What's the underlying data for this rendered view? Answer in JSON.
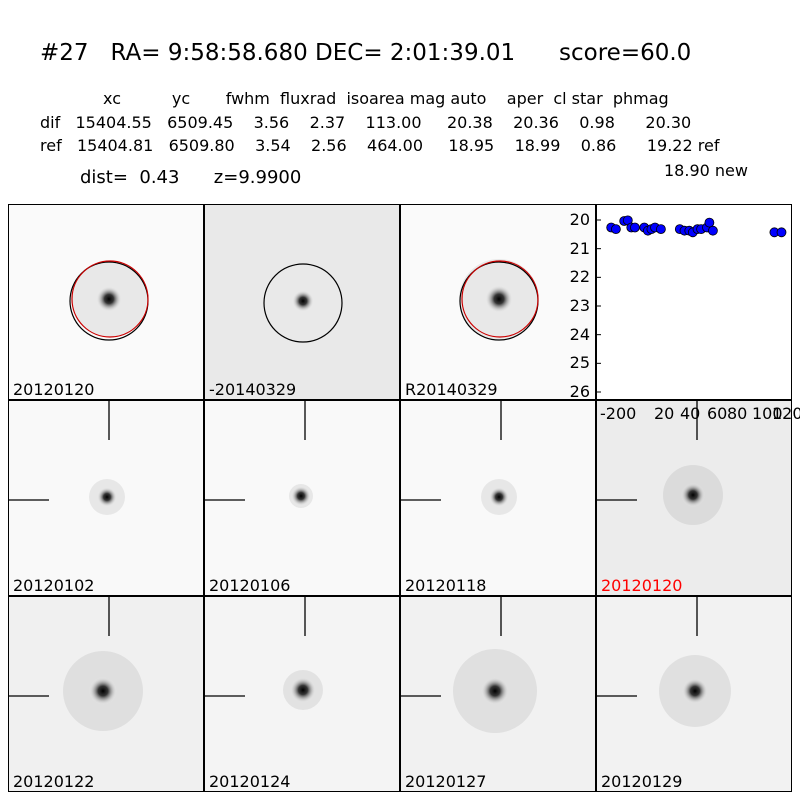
{
  "header": {
    "title": "#27   RA= 9:58:58.680 DEC= 2:01:39.01      score=60.0",
    "columns": "xc          yc       fwhm  fluxrad  isoarea mag auto    aper  cl star  phmag",
    "dif_row": "dif   15404.55   6509.45    3.56    2.37    113.00     20.38    20.36    0.98      20.30",
    "ref_row": "ref   15404.81   6509.80    3.54    2.56    464.00     18.95    18.99    0.86      19.22 ref",
    "new_row": "18.90 new",
    "dist_line": "dist=  0.43      z=9.9900"
  },
  "panels": [
    {
      "label": "20120120",
      "label_color": "#000000",
      "bg": "#fafafa"
    },
    {
      "label": "-20140329",
      "label_color": "#000000",
      "bg": "#e9e9e9"
    },
    {
      "label": "R20140329",
      "label_color": "#000000",
      "bg": "#fafafa"
    },
    {
      "label": "20120102",
      "label_color": "#000000",
      "bg": "#f9f9f9"
    },
    {
      "label": "20120106",
      "label_color": "#000000",
      "bg": "#f9f9f9"
    },
    {
      "label": "20120118",
      "label_color": "#000000",
      "bg": "#f9f9f9"
    },
    {
      "label": "20120120",
      "label_color": "#ff0000",
      "bg": "#ececec"
    },
    {
      "label": "20120122",
      "label_color": "#000000",
      "bg": "#f0f0f0"
    },
    {
      "label": "20120124",
      "label_color": "#000000",
      "bg": "#f4f4f4"
    },
    {
      "label": "20120127",
      "label_color": "#000000",
      "bg": "#f1f1f1"
    },
    {
      "label": "20120129",
      "label_color": "#000000",
      "bg": "#f2f2f2"
    }
  ],
  "chart_data": {
    "type": "scatter",
    "title": "",
    "xlabel": "",
    "ylabel": "",
    "ylim": [
      26,
      20
    ],
    "y_inverted": true,
    "yticks": [
      20,
      21,
      22,
      23,
      24,
      25,
      26
    ],
    "xtick_labels": [
      "-200",
      "20",
      "40",
      "60",
      "80",
      "100",
      "120"
    ],
    "series": [
      {
        "color": "#0000ff",
        "points": [
          [
            -28,
            20.2
          ],
          [
            -24,
            20.25
          ],
          [
            -17,
            20.0
          ],
          [
            -14,
            19.98
          ],
          [
            -11,
            20.2
          ],
          [
            -8,
            20.2
          ],
          [
            0,
            20.2
          ],
          [
            3,
            20.3
          ],
          [
            6,
            20.25
          ],
          [
            9,
            20.2
          ],
          [
            14,
            20.25
          ],
          [
            30,
            20.25
          ],
          [
            34,
            20.3
          ],
          [
            38,
            20.3
          ],
          [
            41,
            20.35
          ],
          [
            45,
            20.25
          ],
          [
            48,
            20.25
          ],
          [
            53,
            20.2
          ],
          [
            55,
            20.05
          ],
          [
            58,
            20.3
          ],
          [
            110,
            20.35
          ],
          [
            116,
            20.35
          ]
        ]
      }
    ],
    "x_domain": [
      -40,
      124
    ]
  }
}
